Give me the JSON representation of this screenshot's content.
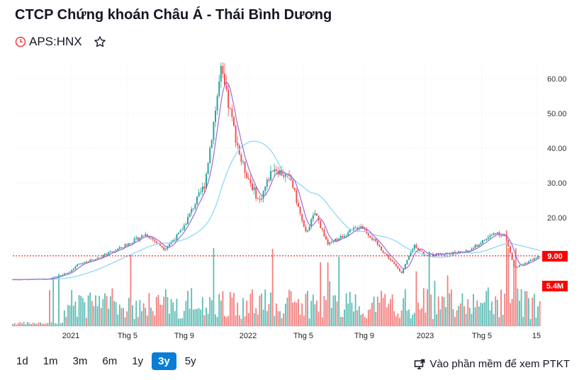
{
  "header": {
    "title": "CTCP Chứng khoán Châu Á - Thái Bình Dương",
    "symbol": "APS:HNX",
    "clock_icon": "clock-icon",
    "star_icon": "star-icon"
  },
  "colors": {
    "up": "#26a69a",
    "down": "#ef5350",
    "ma_short": "#9c6ad9",
    "ma_long": "#8fd8f5",
    "price_label": "#ff0000",
    "active_range": "#0a7ed6"
  },
  "chart_data": {
    "type": "candlestick",
    "y_ticks": [
      "60.00",
      "50.00",
      "40.00",
      "30.00",
      "20.00"
    ],
    "y_range": [
      0,
      65
    ],
    "x_ticks": [
      "2021",
      "Thg 5",
      "Thg 9",
      "2022",
      "Thg 5",
      "Thg 9",
      "2023",
      "Thg 5",
      "15"
    ],
    "price_path": [
      [
        "2020-09-01",
        2.2
      ],
      [
        "2020-11-15",
        2.3
      ],
      [
        "2021-01-01",
        4.5
      ],
      [
        "2021-01-15",
        6.5
      ],
      [
        "2021-03-01",
        8.5
      ],
      [
        "2021-04-15",
        11.2
      ],
      [
        "2021-06-10",
        15.3
      ],
      [
        "2021-07-20",
        11
      ],
      [
        "2021-08-25",
        16
      ],
      [
        "2021-10-10",
        29.6
      ],
      [
        "2021-11-10",
        62
      ],
      [
        "2021-11-25",
        52
      ],
      [
        "2021-12-20",
        35.7
      ],
      [
        "2022-01-25",
        24.5
      ],
      [
        "2022-02-25",
        34.7
      ],
      [
        "2022-04-05",
        30.6
      ],
      [
        "2022-05-05",
        15.3
      ],
      [
        "2022-05-25",
        21.4
      ],
      [
        "2022-06-20",
        12.2
      ],
      [
        "2022-08-25",
        17.8
      ],
      [
        "2022-10-15",
        9.2
      ],
      [
        "2022-11-15",
        4.1
      ],
      [
        "2022-12-10",
        12.2
      ],
      [
        "2023-01-01",
        9.2
      ],
      [
        "2023-04-01",
        10.2
      ],
      [
        "2023-06-05",
        15.9
      ],
      [
        "2023-06-28",
        14.3
      ],
      [
        "2023-07-18",
        5.5
      ],
      [
        "2023-09-18",
        9.0
      ]
    ],
    "last_price": "9.00",
    "last_price_value": 9.0,
    "last_volume": "5.4M",
    "grid": true
  },
  "ranges": [
    {
      "label": "1d"
    },
    {
      "label": "1m"
    },
    {
      "label": "3m"
    },
    {
      "label": "6m"
    },
    {
      "label": "1y"
    },
    {
      "label": "3y",
      "active": true
    },
    {
      "label": "5y"
    }
  ],
  "footer": {
    "external_label": "Vào phần mềm để xem PTKT",
    "external_icon": "monitor-external-icon"
  }
}
